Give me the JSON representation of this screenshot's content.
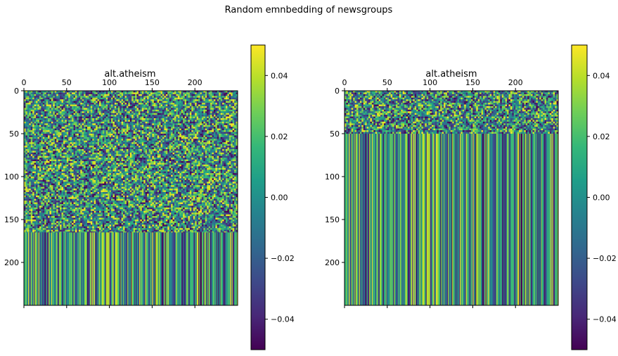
{
  "figure_title": "Random emnbedding of newsgroups",
  "colormap": "viridis",
  "colormap_stops": [
    "#440154",
    "#482878",
    "#3e4989",
    "#31688e",
    "#26828e",
    "#1f9e89",
    "#35b779",
    "#6ece58",
    "#b5de2b",
    "#fde725"
  ],
  "chart_data": [
    {
      "type": "heatmap",
      "title": "alt.atheism",
      "xlabel": "",
      "ylabel": "",
      "shape": [
        250,
        250
      ],
      "noise_rows": [
        0,
        165
      ],
      "constant_column_rows": [
        165,
        250
      ],
      "xlim": [
        0,
        250
      ],
      "ylim": [
        250,
        0
      ],
      "x_ticks": [
        "0",
        "50",
        "100",
        "150",
        "200"
      ],
      "y_ticks": [
        "0",
        "50",
        "100",
        "150",
        "200"
      ],
      "value_range": [
        -0.05,
        0.05
      ],
      "colorbar": {
        "ticks": [
          "0.04",
          "0.02",
          "0.00",
          "−0.02",
          "−0.04"
        ]
      }
    },
    {
      "type": "heatmap",
      "title": "alt.atheism",
      "xlabel": "",
      "ylabel": "",
      "shape": [
        250,
        250
      ],
      "noise_rows": [
        0,
        50
      ],
      "constant_column_rows": [
        50,
        250
      ],
      "xlim": [
        0,
        250
      ],
      "ylim": [
        250,
        0
      ],
      "x_ticks": [
        "0",
        "50",
        "100",
        "150",
        "200"
      ],
      "y_ticks": [
        "0",
        "50",
        "100",
        "150",
        "200"
      ],
      "value_range": [
        -0.05,
        0.05
      ],
      "colorbar": {
        "ticks": [
          "0.04",
          "0.02",
          "0.00",
          "−0.02",
          "−0.04"
        ]
      }
    }
  ]
}
